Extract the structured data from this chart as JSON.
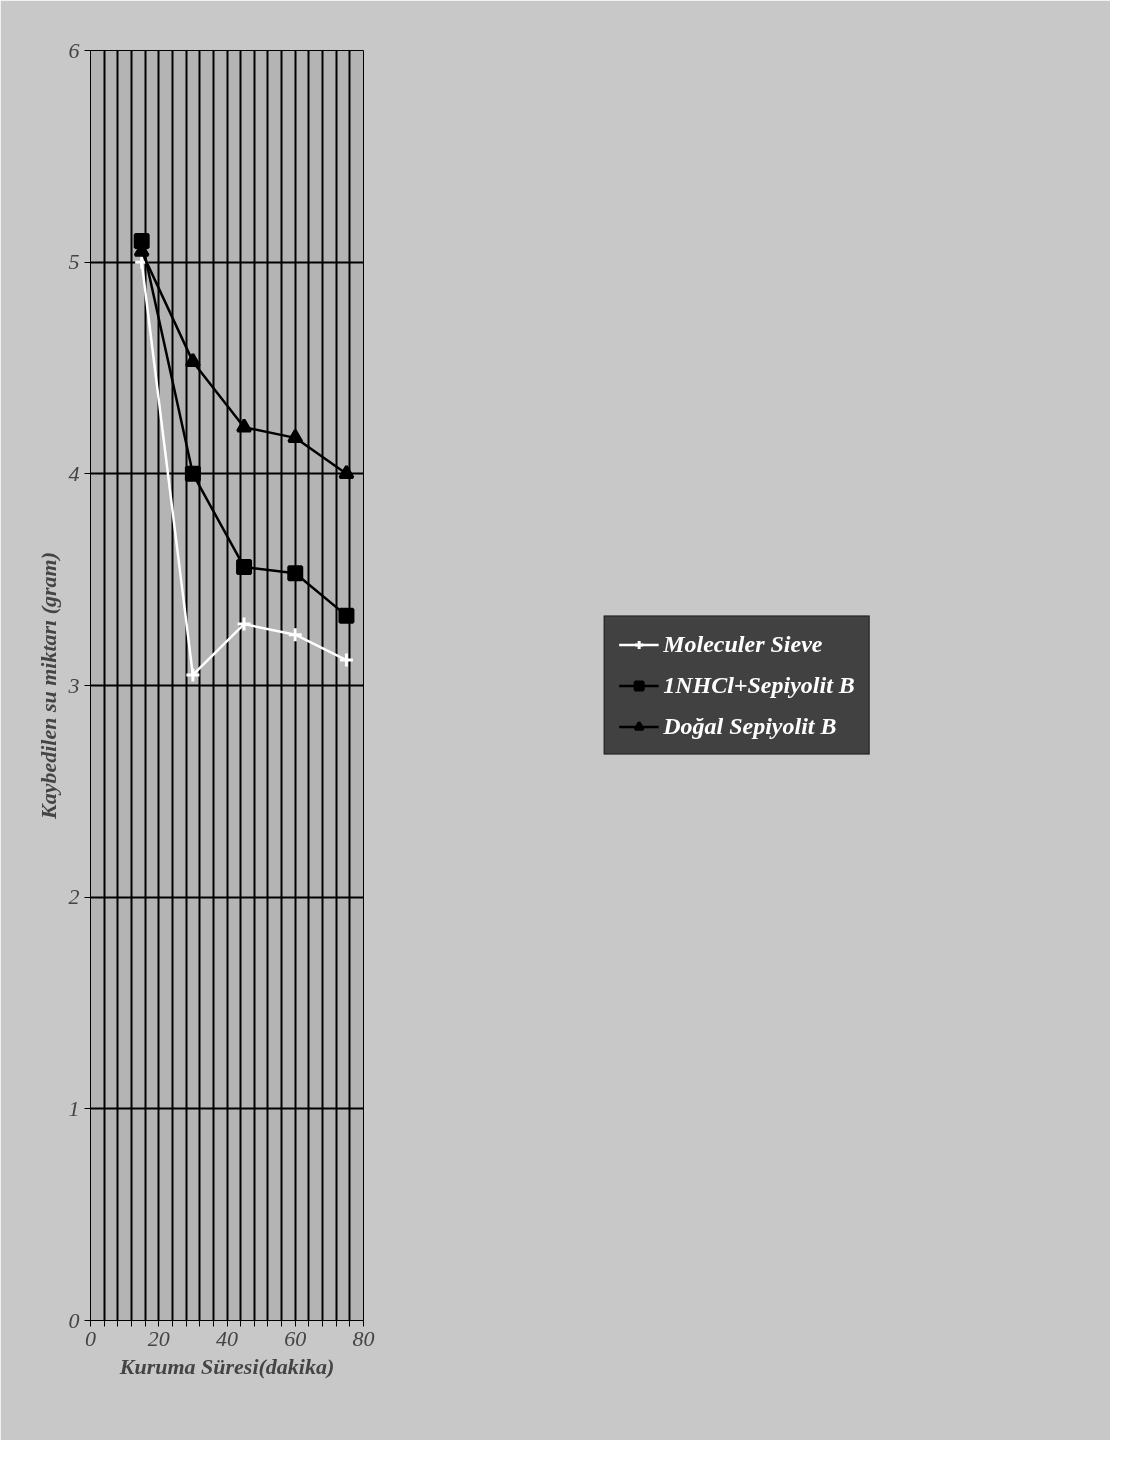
{
  "chart_data": {
    "type": "line",
    "xlabel": "Kuruma Süresi(dakika)",
    "ylabel": "Kaybedilen su miktarı (gram)",
    "x": [
      15,
      30,
      45,
      60,
      75
    ],
    "series": [
      {
        "name": "Moleculer Sieve",
        "color": "#ffffff",
        "marker": "cross",
        "values": [
          5.0,
          3.05,
          3.29,
          3.24,
          3.12
        ]
      },
      {
        "name": "1NHCl+Sepiyolit B",
        "color": "#000000",
        "marker": "square",
        "values": [
          5.1,
          4.0,
          3.56,
          3.53,
          3.33
        ]
      },
      {
        "name": "Doğal Sepiyolit B",
        "color": "#000000",
        "marker": "triangle",
        "values": [
          5.05,
          4.53,
          4.22,
          4.17,
          4.0
        ]
      }
    ],
    "xlim": [
      0,
      80
    ],
    "ylim": [
      0,
      6
    ],
    "xticks": [
      0,
      {
        "value": 4,
        "label": null
      },
      {
        "value": 8,
        "label": null
      },
      {
        "value": 12,
        "label": null
      },
      {
        "value": 16,
        "label": null
      },
      20,
      {
        "value": 24,
        "label": null
      },
      {
        "value": 28,
        "label": null
      },
      {
        "value": 32,
        "label": null
      },
      {
        "value": 36,
        "label": null
      },
      40,
      {
        "value": 44,
        "label": null
      },
      {
        "value": 48,
        "label": null
      },
      {
        "value": 52,
        "label": null
      },
      {
        "value": 56,
        "label": null
      },
      60,
      {
        "value": 64,
        "label": null
      },
      {
        "value": 68,
        "label": null
      },
      {
        "value": 72,
        "label": null
      },
      {
        "value": 76,
        "label": null
      },
      80
    ],
    "yticks": [
      0,
      1,
      2,
      3,
      4,
      5,
      6
    ],
    "grid": true,
    "legend": "right",
    "line_style": "solid"
  }
}
